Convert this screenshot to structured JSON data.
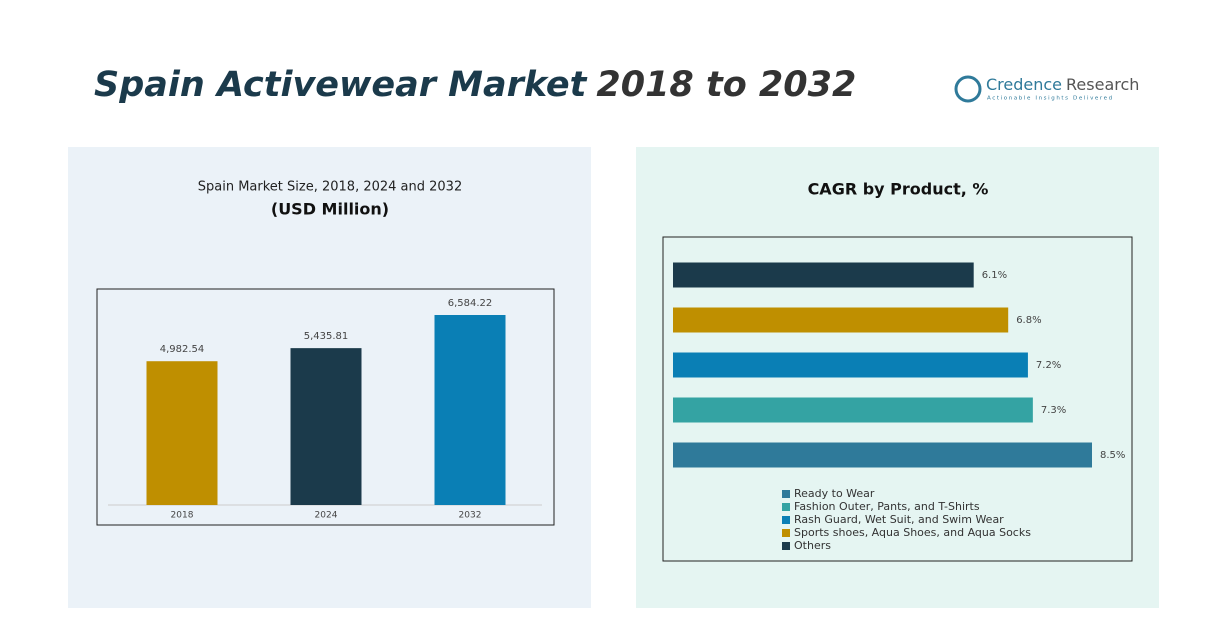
{
  "header": {
    "title_main": "Spain Activewear Market",
    "title_years": "2018 to 2032",
    "logo_name": "Credence",
    "logo_name2": "Research",
    "logo_tagline": "Actionable Insights Delivered"
  },
  "chart_data": [
    {
      "type": "bar",
      "title": "Spain Market Size, 2018, 2024 and 2032",
      "subtitle": "(USD Million)",
      "categories": [
        "2018",
        "2024",
        "2032"
      ],
      "values": [
        4982.54,
        5435.81,
        6584.22
      ],
      "value_labels": [
        "4,982.54",
        "5,435.81",
        "6,584.22"
      ],
      "colors": [
        "#bf8f00",
        "#1b3a4b",
        "#0a7fb5"
      ]
    },
    {
      "type": "barh",
      "title": "CAGR by Product, %",
      "categories": [
        "Ready to Wear",
        "Fashion Outer, Pants, and T-Shirts",
        "Rash Guard, Wet Suit, and Swim Wear",
        "Sports shoes, Aqua Shoes, and Aqua Socks",
        "Others"
      ],
      "values": [
        8.5,
        7.3,
        7.2,
        6.8,
        6.1
      ],
      "value_labels": [
        "8.5%",
        "7.3%",
        "7.2%",
        "6.8%",
        "6.1%"
      ],
      "colors": [
        "#2f7a9a",
        "#34a3a3",
        "#0a7fb5",
        "#bf8f00",
        "#1b3a4b"
      ]
    }
  ]
}
